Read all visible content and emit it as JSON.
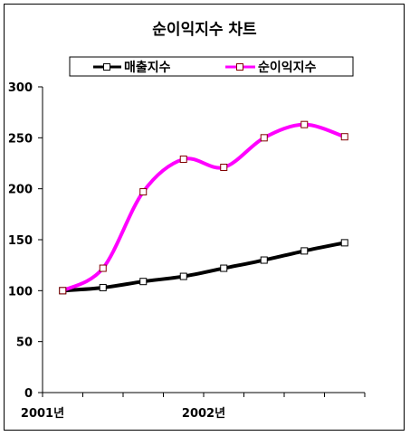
{
  "chart_data": {
    "type": "line",
    "title": "순이익지수 차트",
    "xlabel": "",
    "ylabel": "",
    "ylim": [
      0,
      300
    ],
    "yticks": [
      0,
      50,
      100,
      150,
      200,
      250,
      300
    ],
    "x_labels": [
      "2001년",
      "",
      "",
      "",
      "2002년",
      "",
      "",
      ""
    ],
    "x_tick_labels": [
      "2001년",
      "2002년"
    ],
    "legend_position": "top",
    "grid": false,
    "series": [
      {
        "name": "매출지수",
        "color": "#000000",
        "values": [
          100,
          103,
          109,
          114,
          122,
          130,
          139,
          147
        ]
      },
      {
        "name": "순이익지수",
        "color": "#ff00ff",
        "values": [
          100,
          122,
          197,
          229,
          221,
          250,
          263,
          251
        ]
      }
    ]
  }
}
